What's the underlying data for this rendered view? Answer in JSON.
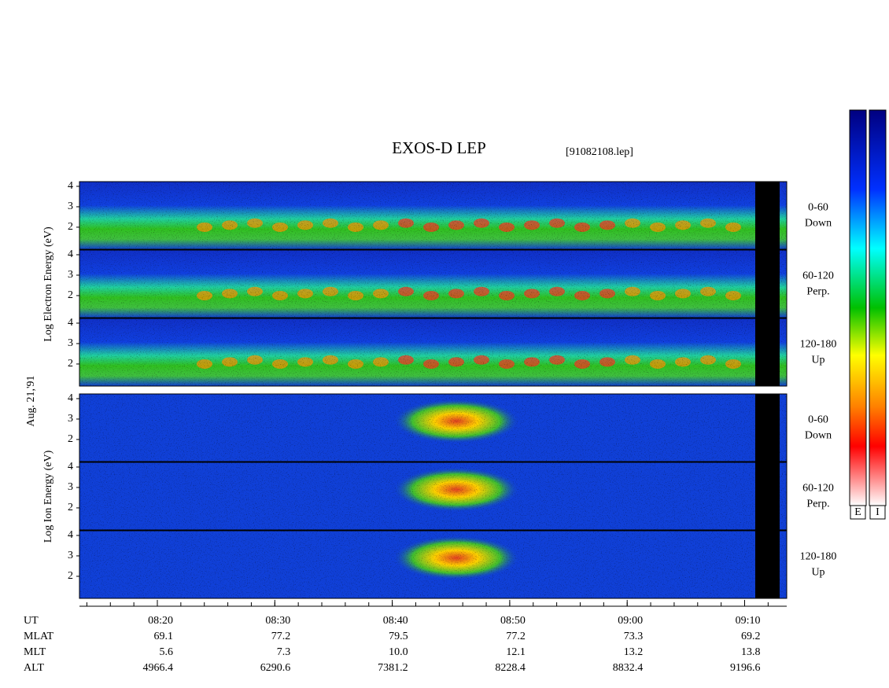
{
  "title": "EXOS-D LEP",
  "file": "[91082108.lep]",
  "date": "Aug. 21,'91",
  "groups": [
    {
      "label": "Log Electron Energy (eV)",
      "panels": [
        {
          "angle": "0-60",
          "direction": "Down"
        },
        {
          "angle": "60-120",
          "direction": "Perp."
        },
        {
          "angle": "120-180",
          "direction": "Up"
        }
      ]
    },
    {
      "label": "Log Ion Energy (eV)",
      "panels": [
        {
          "angle": "0-60",
          "direction": "Down"
        },
        {
          "angle": "60-120",
          "direction": "Perp."
        },
        {
          "angle": "120-180",
          "direction": "Up"
        }
      ]
    }
  ],
  "energy_axis": {
    "range": [
      0.92,
      4.23
    ],
    "ticks": [
      2,
      3,
      4
    ]
  },
  "time_axis": {
    "ticks": [
      "08:20",
      "08:30",
      "08:40",
      "08:50",
      "09:00",
      "09:10"
    ]
  },
  "orbit": {
    "rows": [
      {
        "label": "UT",
        "values": [
          "08:20",
          "08:30",
          "08:40",
          "08:50",
          "09:00",
          "09:10"
        ]
      },
      {
        "label": "MLAT",
        "values": [
          "69.1",
          "77.2",
          "79.5",
          "77.2",
          "73.3",
          "69.2"
        ]
      },
      {
        "label": "MLT",
        "values": [
          "5.6",
          "7.3",
          "10.0",
          "12.1",
          "13.2",
          "13.8"
        ]
      },
      {
        "label": "ALT",
        "values": [
          "4966.4",
          "6290.6",
          "7381.2",
          "8228.4",
          "8832.4",
          "9196.6"
        ]
      }
    ]
  },
  "colorbars": [
    "E",
    "I"
  ]
}
